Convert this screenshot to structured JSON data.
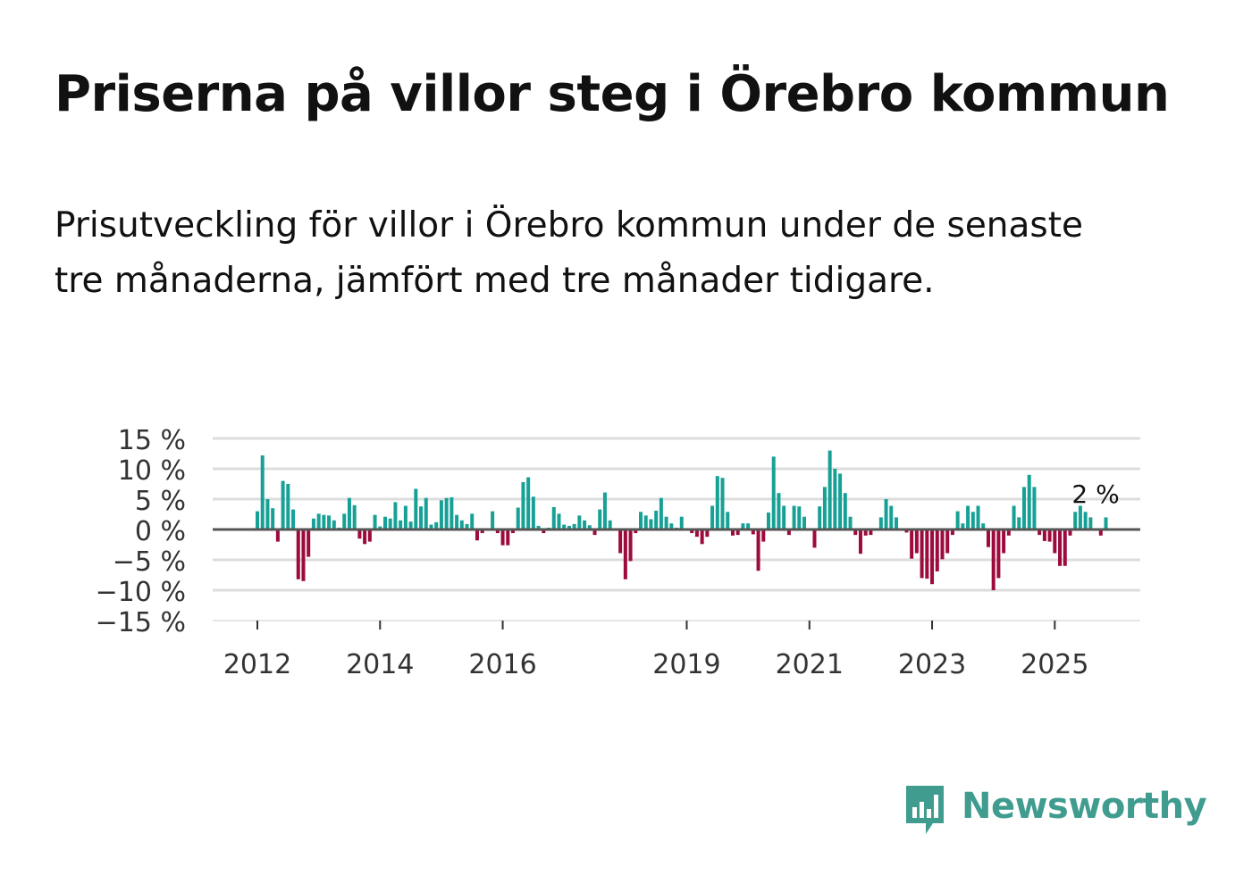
{
  "header": {
    "title": "Priserna på villor steg i Örebro kommun",
    "subtitle": "Prisutveckling för villor i Örebro kommun under de senaste tre månaderna, jämfört med tre månader tidigare."
  },
  "brand": {
    "name": "Newsworthy",
    "color": "#3f9c8f"
  },
  "chart_data": {
    "type": "bar",
    "title": "Priserna på villor steg i Örebro kommun",
    "subtitle": "Prisutveckling för villor i Örebro kommun under de senaste tre månaderna, jämfört med tre månader tidigare.",
    "xlabel": "",
    "ylabel": "",
    "x_start": "2012-01",
    "x_frequency": "monthly",
    "ylim": [
      -15,
      15
    ],
    "grid": true,
    "legend": "none",
    "x_tick_labels": [
      "2012",
      "2014",
      "2016",
      "2019",
      "2021",
      "2023",
      "2025"
    ],
    "x_tick_years": [
      2012,
      2014,
      2016,
      2019,
      2021,
      2023,
      2025
    ],
    "y_ticks": [
      15,
      10,
      5,
      0,
      -5,
      -10,
      -15
    ],
    "y_tick_labels": [
      "15 %",
      "10 %",
      "5 %",
      "0 %",
      "−5 %",
      "−10 %",
      "−15 %"
    ],
    "colors": {
      "positive": "#17a196",
      "negative": "#9c0a3e",
      "zero_line": "#555555",
      "grid": "#dddddd"
    },
    "annotation": {
      "text": "2 %",
      "series_index": 164
    },
    "values": [
      3.0,
      12.2,
      5.0,
      3.5,
      -2.0,
      8.0,
      7.5,
      3.3,
      -8.2,
      -8.5,
      -4.5,
      1.8,
      2.6,
      2.4,
      2.3,
      1.5,
      0.3,
      2.6,
      5.2,
      4.0,
      -1.5,
      -2.4,
      -2.0,
      2.4,
      0.5,
      2.1,
      1.8,
      4.5,
      1.5,
      3.9,
      1.3,
      6.7,
      3.8,
      5.2,
      0.8,
      1.2,
      4.8,
      5.2,
      5.3,
      2.4,
      1.5,
      0.9,
      2.6,
      -1.8,
      -0.6,
      0.1,
      3.0,
      -0.6,
      -2.6,
      -2.6,
      -0.6,
      3.6,
      7.8,
      8.6,
      5.4,
      0.6,
      -0.6,
      0.3,
      3.7,
      2.6,
      0.8,
      0.6,
      0.9,
      2.3,
      1.5,
      0.7,
      -0.9,
      3.3,
      6.1,
      1.5,
      0.0,
      -3.9,
      -8.2,
      -5.2,
      -0.6,
      2.9,
      2.3,
      1.7,
      3.1,
      5.2,
      2.1,
      1.0,
      0.3,
      2.1,
      0.0,
      -0.6,
      -1.2,
      -2.4,
      -1.2,
      3.9,
      8.8,
      8.5,
      2.9,
      -1.0,
      -0.9,
      1.0,
      1.0,
      -0.8,
      -6.8,
      -2.0,
      2.8,
      12.0,
      6.0,
      3.9,
      -0.9,
      3.9,
      3.8,
      2.1,
      0.0,
      -3.0,
      3.8,
      7.0,
      13.0,
      10.0,
      9.2,
      6.0,
      2.1,
      -0.9,
      -4.0,
      -1.0,
      -0.9,
      0.0,
      2.0,
      5.0,
      3.9,
      2.0,
      0.0,
      -0.5,
      -4.8,
      -3.9,
      -8.0,
      -8.1,
      -9.0,
      -6.9,
      -4.9,
      -3.9,
      -0.9,
      3.0,
      1.0,
      3.9,
      2.9,
      3.9,
      1.0,
      -2.9,
      -10.0,
      -8.0,
      -3.9,
      -1.0,
      3.9,
      2.0,
      7.0,
      9.0,
      7.0,
      -0.9,
      -1.9,
      -2.0,
      -3.9,
      -6.0,
      -6.0,
      -1.0,
      2.9,
      3.9,
      2.9,
      2.0,
      0.0,
      -1.0,
      2.0
    ]
  }
}
